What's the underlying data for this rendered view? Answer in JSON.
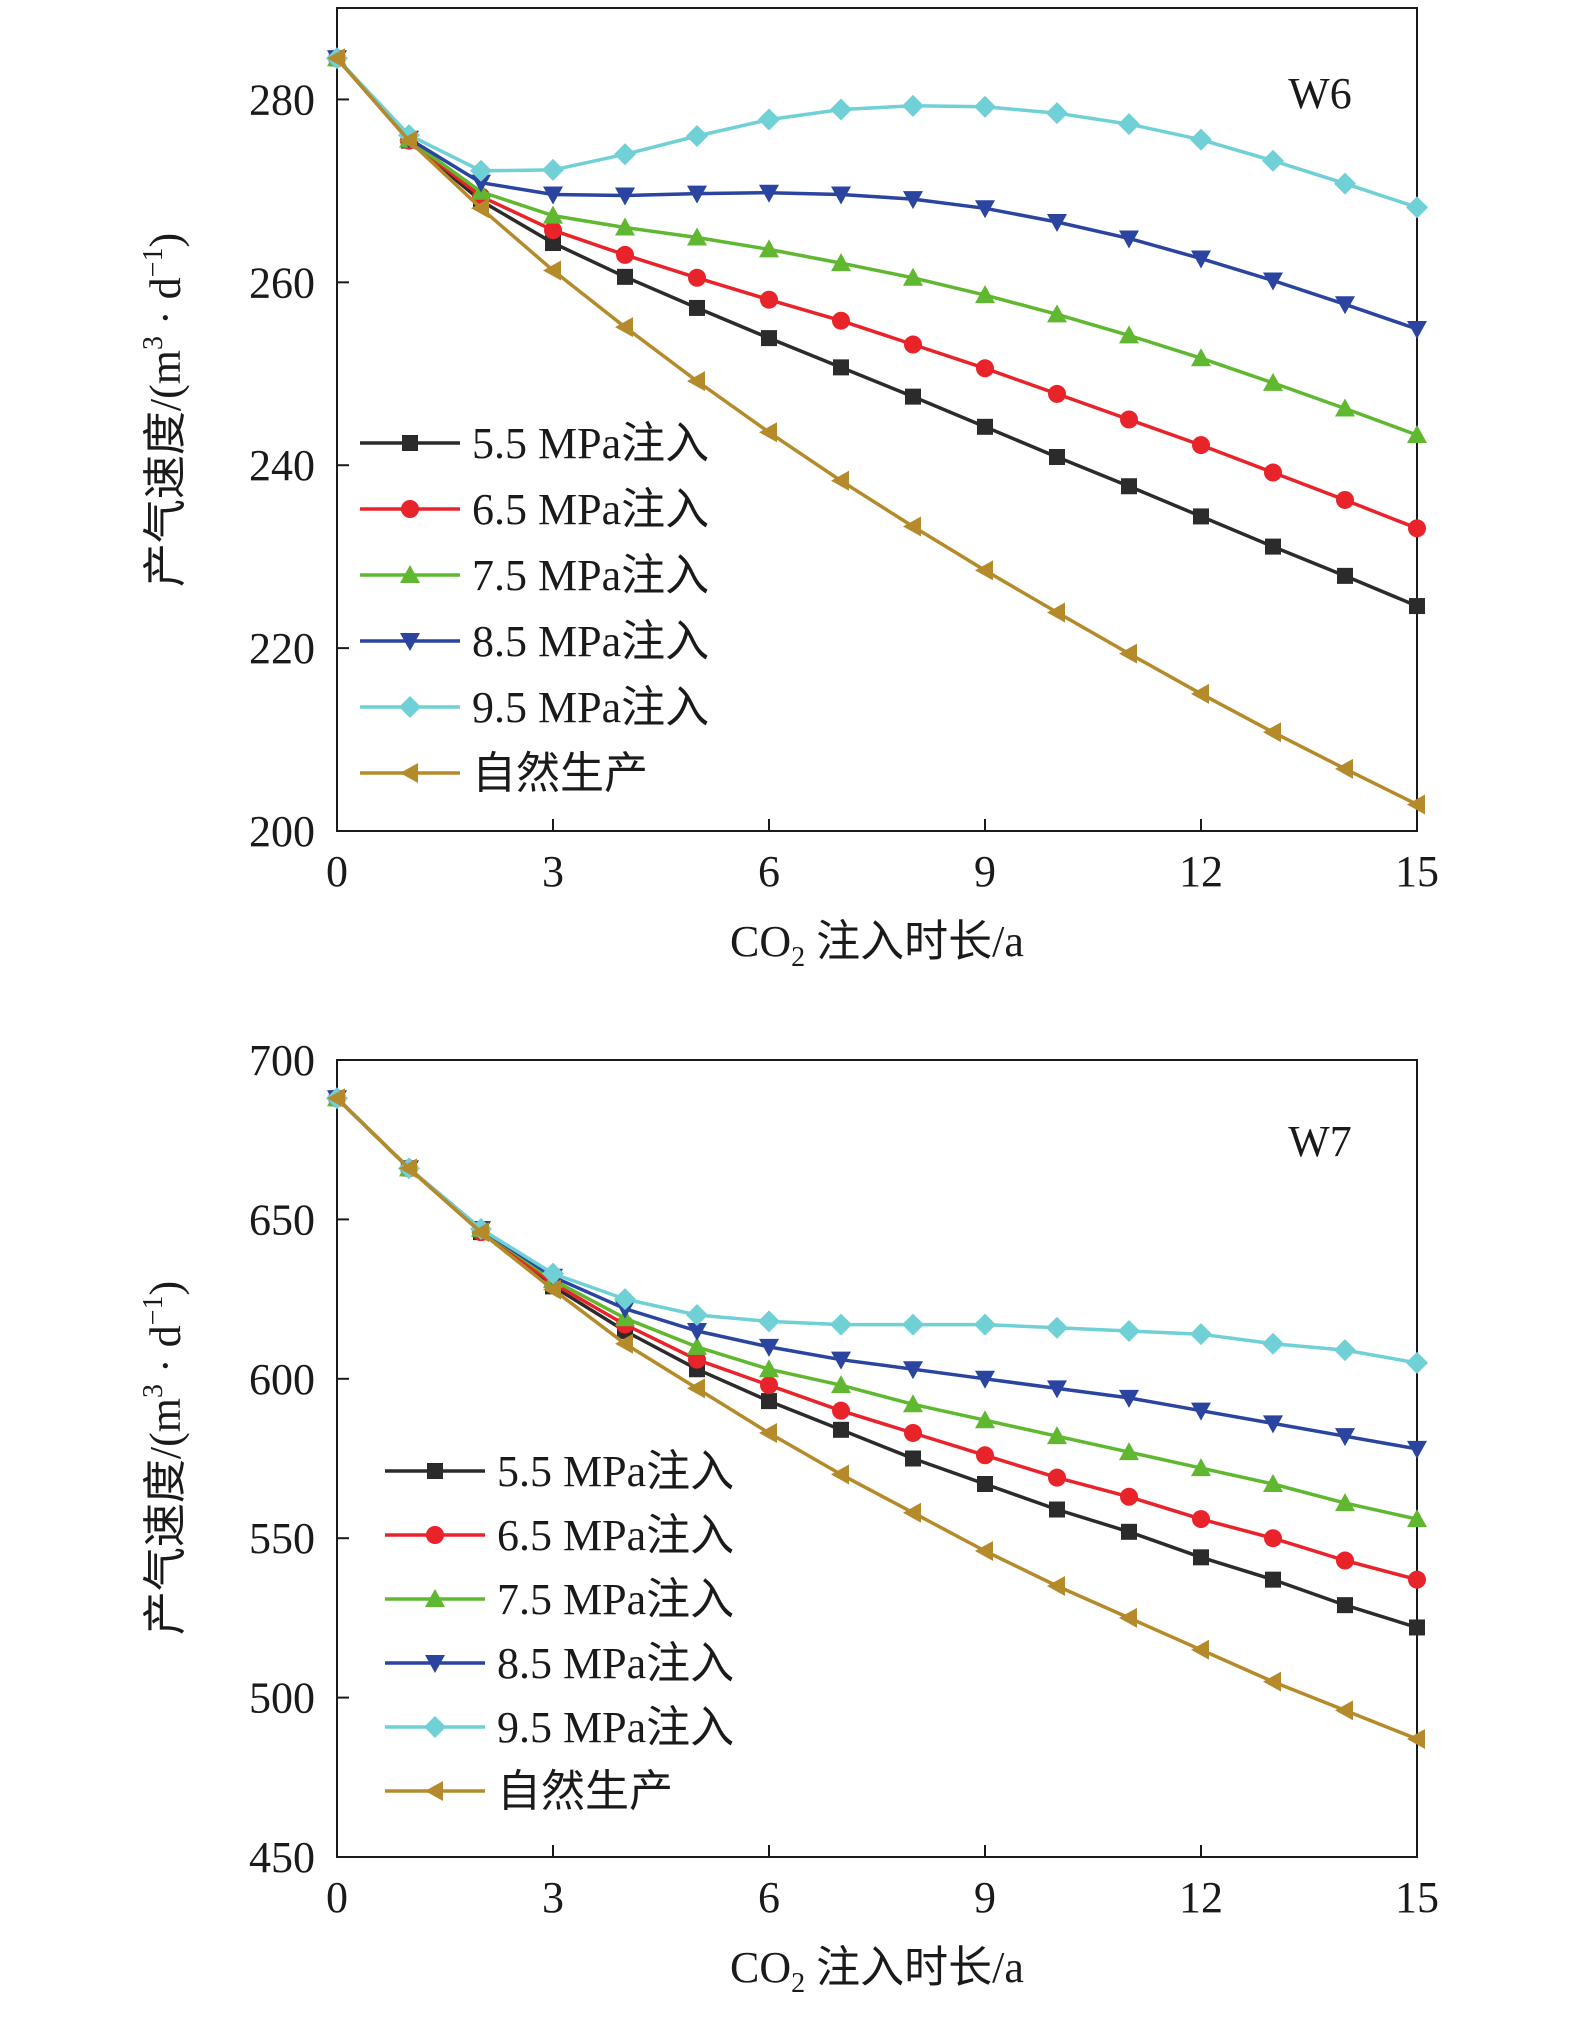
{
  "chart_data": [
    {
      "type": "line",
      "annotation": "W6",
      "xlabel": {
        "prefix": "CO",
        "subscript": "2",
        "suffix": " 注入时长/a"
      },
      "ylabel": {
        "text": "产气速度/(m",
        "sup1": "3",
        "mid": " · d",
        "sup2": "−1",
        "end": ")"
      },
      "xlim": [
        0,
        15
      ],
      "ylim": [
        200,
        290
      ],
      "xticks": [
        0,
        3,
        6,
        9,
        12,
        15
      ],
      "yticks": [
        200,
        220,
        240,
        260,
        280
      ],
      "legend_position": "center-left",
      "x": [
        0,
        1,
        2,
        3,
        4,
        5,
        6,
        7,
        8,
        9,
        10,
        11,
        12,
        13,
        14,
        15
      ],
      "series": [
        {
          "name": "5.5 MPa注入",
          "color": "#2b2b2b",
          "marker": "square",
          "values": [
            284.5,
            275.5,
            268.9,
            264.3,
            260.6,
            257.2,
            253.9,
            250.7,
            247.5,
            244.2,
            240.9,
            237.7,
            234.4,
            231.1,
            227.9,
            224.6
          ]
        },
        {
          "name": "6.5 MPa注入",
          "color": "#e8232a",
          "marker": "circle",
          "values": [
            284.5,
            275.5,
            269.4,
            265.7,
            263.0,
            260.5,
            258.1,
            255.8,
            253.2,
            250.6,
            247.8,
            245.0,
            242.2,
            239.2,
            236.2,
            233.1
          ]
        },
        {
          "name": "7.5 MPa注入",
          "color": "#5fb830",
          "marker": "triangle-up",
          "values": [
            284.5,
            275.6,
            269.9,
            267.3,
            266.0,
            264.9,
            263.6,
            262.1,
            260.5,
            258.6,
            256.5,
            254.2,
            251.7,
            249.0,
            246.2,
            243.3
          ]
        },
        {
          "name": "8.5 MPa注入",
          "color": "#2a44a0",
          "marker": "triangle-down",
          "values": [
            284.5,
            275.7,
            270.9,
            269.6,
            269.5,
            269.7,
            269.8,
            269.6,
            269.1,
            268.1,
            266.6,
            264.8,
            262.6,
            260.2,
            257.6,
            254.9
          ]
        },
        {
          "name": "9.5 MPa注入",
          "color": "#6fd0d6",
          "marker": "diamond",
          "values": [
            284.5,
            276.1,
            272.2,
            272.3,
            274.0,
            276.0,
            277.8,
            278.9,
            279.3,
            279.2,
            278.5,
            277.3,
            275.6,
            273.3,
            270.8,
            268.2
          ]
        },
        {
          "name": "自然生产",
          "color": "#b58a2a",
          "marker": "triangle-left",
          "values": [
            284.5,
            275.5,
            268.1,
            261.3,
            255.1,
            249.2,
            243.6,
            238.3,
            233.3,
            228.5,
            223.9,
            219.4,
            215.0,
            210.8,
            206.8,
            202.9
          ]
        }
      ]
    },
    {
      "type": "line",
      "annotation": "W7",
      "xlabel": {
        "prefix": "CO",
        "subscript": "2",
        "suffix": " 注入时长/a"
      },
      "ylabel": {
        "text": "产气速度/(m",
        "sup1": "3",
        "mid": " · d",
        "sup2": "−1",
        "end": ")"
      },
      "xlim": [
        0,
        15
      ],
      "ylim": [
        450,
        700
      ],
      "xticks": [
        0,
        3,
        6,
        9,
        12,
        15
      ],
      "yticks": [
        450,
        500,
        550,
        600,
        650,
        700
      ],
      "legend_position": "lower-left",
      "x": [
        0,
        1,
        2,
        3,
        4,
        5,
        6,
        7,
        8,
        9,
        10,
        11,
        12,
        13,
        14,
        15
      ],
      "series": [
        {
          "name": "5.5 MPa注入",
          "color": "#2b2b2b",
          "marker": "square",
          "values": [
            688,
            666,
            646,
            629,
            615,
            603,
            593,
            584,
            575,
            567,
            559,
            552,
            544,
            537,
            529,
            522
          ]
        },
        {
          "name": "6.5 MPa注入",
          "color": "#e8232a",
          "marker": "circle",
          "values": [
            688,
            666,
            646,
            630,
            617,
            606,
            598,
            590,
            583,
            576,
            569,
            563,
            556,
            550,
            543,
            537
          ]
        },
        {
          "name": "7.5 MPa注入",
          "color": "#5fb830",
          "marker": "triangle-up",
          "values": [
            688,
            666,
            647,
            631,
            619,
            610,
            603,
            598,
            592,
            587,
            582,
            577,
            572,
            567,
            561,
            556
          ]
        },
        {
          "name": "8.5 MPa注入",
          "color": "#2a44a0",
          "marker": "triangle-down",
          "values": [
            688,
            666,
            647,
            632,
            622,
            615,
            610,
            606,
            603,
            600,
            597,
            594,
            590,
            586,
            582,
            578
          ]
        },
        {
          "name": "9.5 MPa注入",
          "color": "#6fd0d6",
          "marker": "diamond",
          "values": [
            688,
            666,
            647,
            633,
            625,
            620,
            618,
            617,
            617,
            617,
            616,
            615,
            614,
            611,
            609,
            605
          ]
        },
        {
          "name": "自然生产",
          "color": "#b58a2a",
          "marker": "triangle-left",
          "values": [
            688,
            666,
            646,
            628,
            611,
            597,
            583,
            570,
            558,
            546,
            535,
            525,
            515,
            505,
            496,
            487
          ]
        }
      ]
    }
  ]
}
